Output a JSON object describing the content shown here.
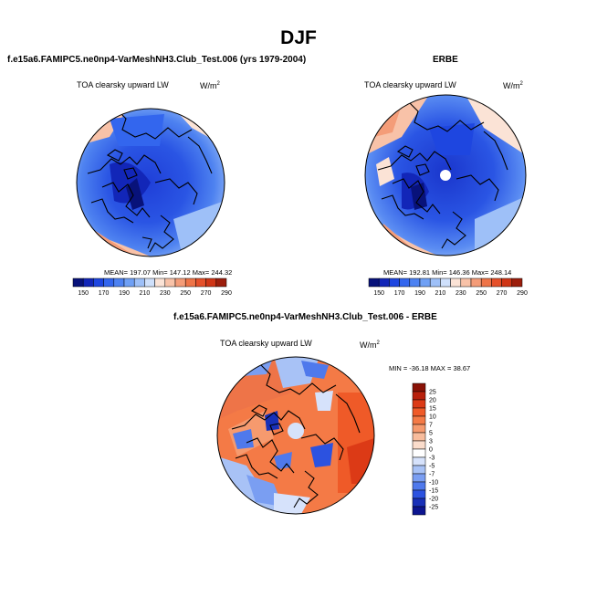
{
  "season": "DJF",
  "panels": {
    "model": {
      "title": "f.e15a6.FAMIPC5.ne0np4-VarMeshNH3.Club_Test.006 (yrs 1979-2004)",
      "variable": "TOA clearsky upward LW",
      "units_base": "W/m",
      "units_exp": "2",
      "stats": "MEAN= 197.07  Min= 147.12  Max= 244.32"
    },
    "obs": {
      "title": "ERBE",
      "variable": "TOA clearsky upward LW",
      "units_base": "W/m",
      "units_exp": "2",
      "stats": "MEAN= 192.81  Min= 146.36  Max= 248.14"
    },
    "diff": {
      "title": "f.e15a6.FAMIPC5.ne0np4-VarMeshNH3.Club_Test.006 - ERBE",
      "variable": "TOA clearsky upward LW",
      "units_base": "W/m",
      "units_exp": "2",
      "stats": "MIN = -36.18 MAX =  38.67"
    }
  },
  "colorbars": {
    "absolute": {
      "labels": [
        "150",
        "170",
        "190",
        "210",
        "230",
        "250",
        "270",
        "290"
      ],
      "colors": [
        "#08127a",
        "#1226b8",
        "#1e46e0",
        "#3366ee",
        "#4d82f2",
        "#6fa0f5",
        "#9ec0f8",
        "#cfe0fb",
        "#fbe3d6",
        "#f8c2a8",
        "#f49c78",
        "#ee7448",
        "#e5502a",
        "#cf3516",
        "#9c1e0c"
      ]
    },
    "difference": {
      "labels": [
        "25",
        "20",
        "15",
        "10",
        "7",
        "5",
        "3",
        "0",
        "-3",
        "-5",
        "-7",
        "-10",
        "-15",
        "-20",
        "-25"
      ],
      "colors": [
        "#8a1206",
        "#b8200c",
        "#dc3a16",
        "#ef5a28",
        "#f47a46",
        "#f69a6e",
        "#f8bc9c",
        "#fadccb",
        "#ffffff",
        "#d6e2fb",
        "#a8c2f6",
        "#7a9ef2",
        "#4f79ec",
        "#2c52e0",
        "#1830b8",
        "#0c1590"
      ]
    }
  }
}
